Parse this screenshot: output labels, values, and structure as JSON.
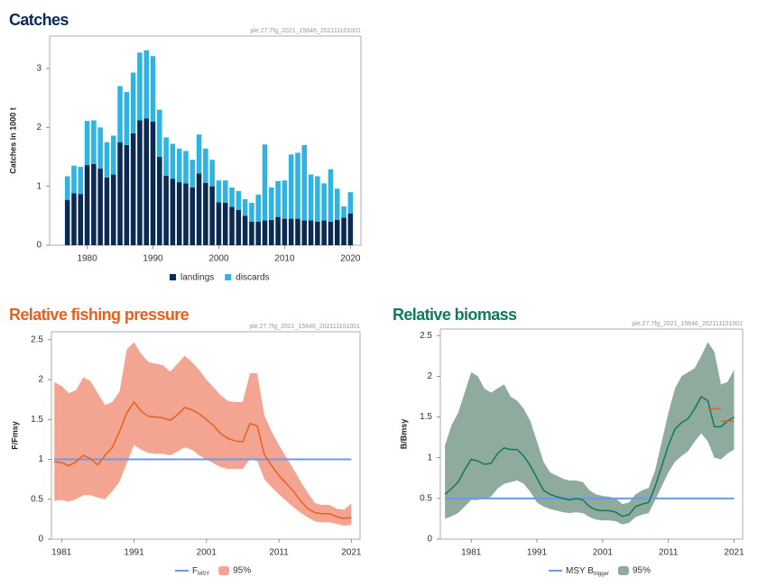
{
  "chart_data": [
    {
      "type": "bar",
      "stacked": true,
      "title": "Catches",
      "title_color": "#0b2a5a",
      "code": "ple.27.7fg_2021_15646_202111101001",
      "ylabel": "Catches in 1000 t",
      "x": [
        1977,
        1978,
        1979,
        1980,
        1981,
        1982,
        1983,
        1984,
        1985,
        1986,
        1987,
        1988,
        1989,
        1990,
        1991,
        1992,
        1993,
        1994,
        1995,
        1996,
        1997,
        1998,
        1999,
        2000,
        2001,
        2002,
        2003,
        2004,
        2005,
        2006,
        2007,
        2008,
        2009,
        2010,
        2011,
        2012,
        2013,
        2014,
        2015,
        2016,
        2017,
        2018,
        2019,
        2020
      ],
      "series": [
        {
          "name": "landings",
          "color": "#0a2a54",
          "values": [
            0.77,
            0.88,
            0.87,
            1.36,
            1.38,
            1.3,
            1.15,
            1.2,
            1.75,
            1.7,
            1.9,
            2.12,
            2.15,
            2.1,
            1.5,
            1.18,
            1.13,
            1.07,
            1.05,
            0.98,
            1.22,
            1.06,
            1.0,
            0.73,
            0.72,
            0.65,
            0.6,
            0.5,
            0.4,
            0.4,
            0.42,
            0.43,
            0.48,
            0.45,
            0.45,
            0.45,
            0.42,
            0.42,
            0.4,
            0.42,
            0.4,
            0.43,
            0.47,
            0.54
          ]
        },
        {
          "name": "discards",
          "color": "#2eb4e3",
          "values": [
            0.4,
            0.47,
            0.46,
            0.75,
            0.74,
            0.7,
            0.6,
            0.66,
            0.95,
            0.9,
            1.03,
            1.15,
            1.16,
            1.11,
            0.8,
            0.65,
            0.59,
            0.57,
            0.55,
            0.47,
            0.66,
            0.58,
            0.45,
            0.37,
            0.38,
            0.33,
            0.32,
            0.28,
            0.32,
            0.46,
            1.29,
            0.55,
            0.61,
            0.65,
            1.09,
            1.12,
            1.28,
            0.78,
            0.77,
            0.63,
            0.89,
            0.53,
            0.19,
            0.36
          ]
        }
      ],
      "xlim": [
        1974.3,
        2021.6
      ],
      "xticks": [
        1980,
        1990,
        2000,
        2010,
        2020
      ],
      "ylim": [
        0,
        3.55
      ],
      "yticks": [
        0,
        1,
        2,
        3
      ]
    },
    {
      "type": "line",
      "title": "Relative fishing pressure",
      "title_color": "#e8601c",
      "code": "ple.27.7fg_2021_15646_202111101001",
      "ylabel": "F/Fmsy",
      "x": [
        1980,
        1981,
        1982,
        1983,
        1984,
        1985,
        1986,
        1987,
        1988,
        1989,
        1990,
        1991,
        1992,
        1993,
        1994,
        1995,
        1996,
        1997,
        1998,
        1999,
        2000,
        2001,
        2002,
        2003,
        2004,
        2005,
        2006,
        2007,
        2008,
        2009,
        2010,
        2011,
        2012,
        2013,
        2014,
        2015,
        2016,
        2017,
        2018,
        2019,
        2020,
        2021
      ],
      "series": [
        {
          "color": "#e8601c",
          "values": [
            0.97,
            0.96,
            0.92,
            0.97,
            1.05,
            1.01,
            0.93,
            1.05,
            1.15,
            1.35,
            1.58,
            1.72,
            1.6,
            1.54,
            1.53,
            1.52,
            1.49,
            1.56,
            1.65,
            1.62,
            1.57,
            1.5,
            1.42,
            1.32,
            1.26,
            1.23,
            1.22,
            1.45,
            1.42,
            1.06,
            0.92,
            0.8,
            0.7,
            0.6,
            0.48,
            0.38,
            0.33,
            0.32,
            0.32,
            0.28,
            0.26,
            0.27
          ]
        }
      ],
      "band": {
        "name": "95%",
        "color": "#f4a592",
        "upper": [
          1.97,
          1.92,
          1.83,
          1.87,
          2.03,
          1.98,
          1.83,
          1.68,
          1.72,
          1.85,
          2.38,
          2.47,
          2.32,
          2.22,
          2.2,
          2.18,
          2.1,
          2.2,
          2.3,
          2.22,
          2.12,
          2.0,
          1.9,
          1.8,
          1.73,
          1.72,
          1.72,
          2.08,
          2.08,
          1.55,
          1.35,
          1.18,
          1.03,
          0.88,
          0.72,
          0.58,
          0.45,
          0.43,
          0.43,
          0.38,
          0.37,
          0.45
        ],
        "lower": [
          0.48,
          0.49,
          0.47,
          0.5,
          0.55,
          0.55,
          0.52,
          0.5,
          0.6,
          0.72,
          0.95,
          1.18,
          1.12,
          1.08,
          1.07,
          1.07,
          1.05,
          1.1,
          1.15,
          1.12,
          1.05,
          1.0,
          0.95,
          0.9,
          0.88,
          0.88,
          0.88,
          1.0,
          0.98,
          0.75,
          0.65,
          0.56,
          0.48,
          0.4,
          0.33,
          0.27,
          0.22,
          0.21,
          0.21,
          0.19,
          0.17,
          0.18
        ]
      },
      "reference": {
        "name": "F",
        "name_sub": "MSY",
        "color": "#6a9ae8",
        "value": 1
      },
      "xlim": [
        1979.6,
        2022.2
      ],
      "xticks": [
        1981,
        1991,
        2001,
        2011,
        2021
      ],
      "ylim": [
        0,
        2.6
      ],
      "yticks": [
        0,
        0.5,
        1,
        1.5,
        2,
        2.5
      ]
    },
    {
      "type": "line",
      "title": "Relative biomass",
      "title_color": "#0e7a5e",
      "code": "ple.27.7fg_2021_15646_202111101001",
      "ylabel": "B/Bmsy",
      "x": [
        1977,
        1978,
        1979,
        1980,
        1981,
        1982,
        1983,
        1984,
        1985,
        1986,
        1987,
        1988,
        1989,
        1990,
        1991,
        1992,
        1993,
        1994,
        1995,
        1996,
        1997,
        1998,
        1999,
        2000,
        2001,
        2002,
        2003,
        2004,
        2005,
        2006,
        2007,
        2008,
        2009,
        2010,
        2011,
        2012,
        2013,
        2014,
        2015,
        2016,
        2017,
        2018,
        2019,
        2020,
        2021
      ],
      "series": [
        {
          "color": "#0e7a5a",
          "values": [
            0.55,
            0.62,
            0.7,
            0.85,
            0.98,
            0.96,
            0.92,
            0.93,
            1.05,
            1.12,
            1.1,
            1.1,
            1.02,
            0.9,
            0.75,
            0.6,
            0.55,
            0.52,
            0.5,
            0.48,
            0.5,
            0.48,
            0.4,
            0.36,
            0.35,
            0.35,
            0.33,
            0.28,
            0.3,
            0.4,
            0.43,
            0.45,
            0.65,
            0.9,
            1.15,
            1.35,
            1.43,
            1.48,
            1.6,
            1.75,
            1.7,
            1.38,
            1.38,
            1.45,
            1.5
          ]
        }
      ],
      "band": {
        "name": "95%",
        "color": "#8fab9e",
        "upper": [
          1.15,
          1.4,
          1.55,
          1.8,
          2.05,
          2.0,
          1.85,
          1.8,
          1.85,
          1.9,
          1.75,
          1.7,
          1.6,
          1.45,
          1.2,
          0.95,
          0.82,
          0.78,
          0.74,
          0.72,
          0.72,
          0.7,
          0.6,
          0.55,
          0.53,
          0.52,
          0.5,
          0.43,
          0.45,
          0.55,
          0.6,
          0.63,
          0.85,
          1.2,
          1.55,
          1.85,
          2.0,
          2.05,
          2.1,
          2.25,
          2.42,
          2.3,
          1.9,
          1.93,
          2.08
        ],
        "lower": [
          0.25,
          0.28,
          0.32,
          0.4,
          0.48,
          0.48,
          0.5,
          0.52,
          0.62,
          0.68,
          0.7,
          0.72,
          0.68,
          0.58,
          0.45,
          0.4,
          0.37,
          0.35,
          0.33,
          0.32,
          0.33,
          0.32,
          0.27,
          0.24,
          0.23,
          0.23,
          0.22,
          0.18,
          0.2,
          0.27,
          0.3,
          0.32,
          0.48,
          0.65,
          0.82,
          0.95,
          1.02,
          1.08,
          1.2,
          1.3,
          1.2,
          1.0,
          0.98,
          1.05,
          1.1
        ]
      },
      "reference": {
        "name": "MSY B",
        "name_sub": "trigger",
        "color": "#6a9ae8",
        "value": 0.5
      },
      "markers": {
        "color": "#e8601c",
        "items": [
          {
            "x0": 2017,
            "x1": 2019,
            "value": 1.6
          },
          {
            "x0": 2019,
            "x1": 2021,
            "value": 1.45
          }
        ]
      },
      "xlim": [
        1976.3,
        2022.3
      ],
      "xticks": [
        1981,
        1991,
        2001,
        2011,
        2021
      ],
      "ylim": [
        0,
        2.58
      ],
      "yticks": [
        0,
        0.5,
        1,
        1.5,
        2,
        2.5
      ]
    }
  ]
}
